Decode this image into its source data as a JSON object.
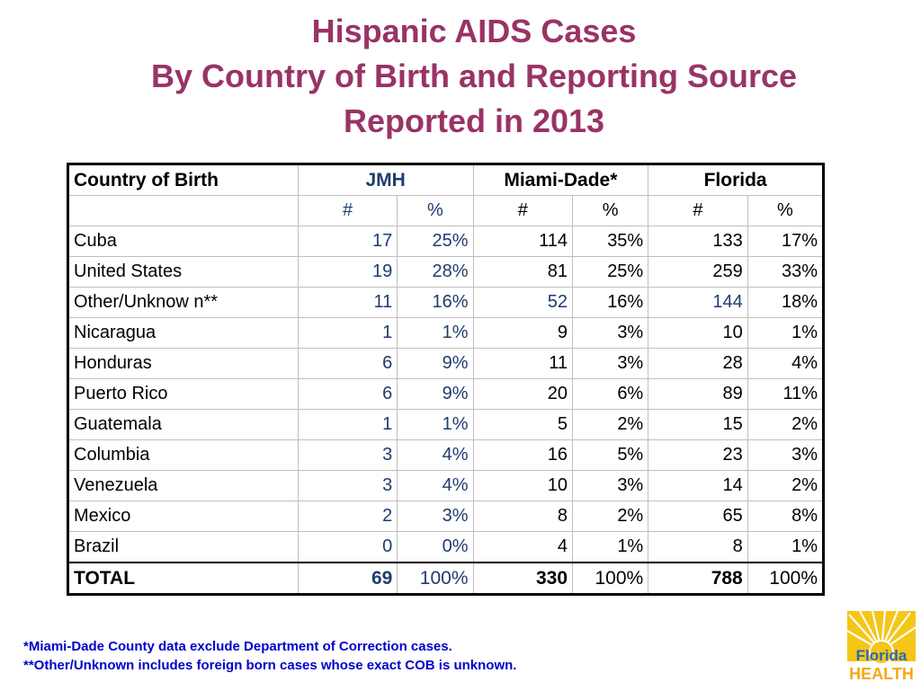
{
  "title": {
    "line1": "Hispanic AIDS Cases",
    "line2": "By Country of Birth and Reporting Source",
    "line3": "Reported in 2013"
  },
  "table": {
    "header": {
      "country": "Country of Birth",
      "jmh": "JMH",
      "miami": "Miami-Dade*",
      "florida": "Florida"
    },
    "subheader": {
      "n": "#",
      "p": "%"
    },
    "rows": [
      {
        "country": "Cuba",
        "jmh_n": "17",
        "jmh_p": "25%",
        "md_n": "114",
        "md_p": "35%",
        "fl_n": "133",
        "fl_p": "17%"
      },
      {
        "country": "United States",
        "jmh_n": "19",
        "jmh_p": "28%",
        "md_n": "81",
        "md_p": "25%",
        "fl_n": "259",
        "fl_p": "33%"
      },
      {
        "country": "Other/Unknow n**",
        "jmh_n": "11",
        "jmh_p": "16%",
        "md_n": "52",
        "md_p": "16%",
        "fl_n": "144",
        "fl_p": "18%"
      },
      {
        "country": "Nicaragua",
        "jmh_n": "1",
        "jmh_p": "1%",
        "md_n": "9",
        "md_p": "3%",
        "fl_n": "10",
        "fl_p": "1%"
      },
      {
        "country": "Honduras",
        "jmh_n": "6",
        "jmh_p": "9%",
        "md_n": "11",
        "md_p": "3%",
        "fl_n": "28",
        "fl_p": "4%"
      },
      {
        "country": "Puerto Rico",
        "jmh_n": "6",
        "jmh_p": "9%",
        "md_n": "20",
        "md_p": "6%",
        "fl_n": "89",
        "fl_p": "11%"
      },
      {
        "country": "Guatemala",
        "jmh_n": "1",
        "jmh_p": "1%",
        "md_n": "5",
        "md_p": "2%",
        "fl_n": "15",
        "fl_p": "2%"
      },
      {
        "country": "Columbia",
        "jmh_n": "3",
        "jmh_p": "4%",
        "md_n": "16",
        "md_p": "5%",
        "fl_n": "23",
        "fl_p": "3%"
      },
      {
        "country": "Venezuela",
        "jmh_n": "3",
        "jmh_p": "4%",
        "md_n": "10",
        "md_p": "3%",
        "fl_n": "14",
        "fl_p": "2%"
      },
      {
        "country": "Mexico",
        "jmh_n": "2",
        "jmh_p": "3%",
        "md_n": "8",
        "md_p": "2%",
        "fl_n": "65",
        "fl_p": "8%"
      },
      {
        "country": "Brazil",
        "jmh_n": "0",
        "jmh_p": "0%",
        "md_n": "4",
        "md_p": "1%",
        "fl_n": "8",
        "fl_p": "1%"
      }
    ],
    "total": {
      "country": "TOTAL",
      "jmh_n": "69",
      "jmh_p": "100%",
      "md_n": "330",
      "md_p": "100%",
      "fl_n": "788",
      "fl_p": "100%"
    }
  },
  "footnotes": {
    "note1": "*Miami-Dade County data exclude Department of Correction cases.",
    "note2": "**Other/Unknown includes foreign born cases whose exact COB is unknown."
  },
  "logo": {
    "line1": "Florida",
    "line2": "HEALTH"
  },
  "colors": {
    "title": "#993366",
    "jmh_blue": "#1f3c6e",
    "footnote": "#0000cc",
    "logo_yellow": "#f5c518",
    "logo_blue": "#2a6ab0"
  }
}
